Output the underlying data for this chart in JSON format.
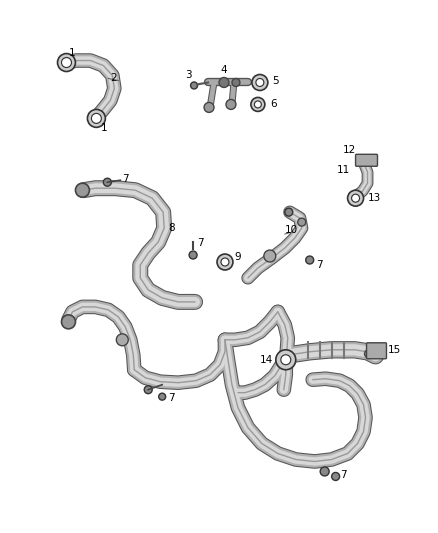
{
  "background_color": "#ffffff",
  "line_color": "#444444",
  "label_color": "#000000",
  "figsize": [
    4.38,
    5.33
  ],
  "dpi": 100,
  "tube_outer_color": "#b0b0b0",
  "tube_inner_color": "#d8d8d8",
  "tube_line_color": "#888888",
  "fitting_color": "#888888",
  "ring_face": "#cccccc",
  "ring_edge": "#333333"
}
